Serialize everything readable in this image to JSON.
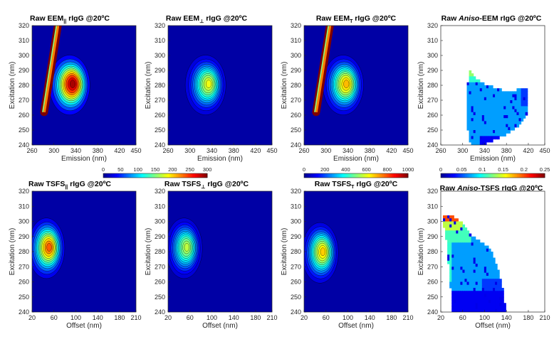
{
  "colors": {
    "colormap": [
      "#00008f",
      "#0000ff",
      "#007fff",
      "#00ffff",
      "#7fff7f",
      "#ffff00",
      "#ff7f00",
      "#ff0000",
      "#7f0000"
    ],
    "background_map": "#0a10a8",
    "contour_line": "#000000",
    "blank": "#ffffff"
  },
  "chart_data": [
    {
      "type": "heatmap",
      "id": "p1",
      "title": {
        "pre": "Raw EEM",
        "sub": "||",
        "post": " rIgG @20ºC",
        "italic": ""
      },
      "xlabel": "Emission (nm)",
      "ylabel": "Excitation (nm)",
      "xlim": [
        260,
        450
      ],
      "ylim": [
        240,
        320
      ],
      "xticks": [
        260,
        300,
        340,
        380,
        420,
        450
      ],
      "xtick_labels": [
        "260",
        "300",
        "340",
        "380",
        "420",
        "450"
      ],
      "yticks": [
        240,
        250,
        260,
        270,
        280,
        290,
        300,
        310,
        320
      ],
      "clim": [
        0,
        300
      ],
      "colorbar": "c1",
      "peak": {
        "x": 335,
        "y": 281,
        "value": 300,
        "sx": 30,
        "sy": 17
      },
      "scatter": true,
      "mask": null
    },
    {
      "type": "heatmap",
      "id": "p2",
      "title": {
        "pre": "Raw EEM",
        "sub": "⊥",
        "post": " rIgG @20ºC",
        "italic": ""
      },
      "xlabel": "Emission (nm)",
      "ylabel": "Excitation (nm)",
      "xlim": [
        260,
        450
      ],
      "ylim": [
        240,
        320
      ],
      "xticks": [
        260,
        300,
        340,
        380,
        420,
        450
      ],
      "xtick_labels": [
        "260",
        "300",
        "340",
        "380",
        "420",
        "450"
      ],
      "yticks": [
        240,
        250,
        260,
        270,
        280,
        290,
        300,
        310,
        320
      ],
      "clim": [
        0,
        300
      ],
      "colorbar": "c1",
      "peak": {
        "x": 335,
        "y": 281,
        "value": 190,
        "sx": 30,
        "sy": 17
      },
      "scatter": false,
      "mask": null
    },
    {
      "type": "heatmap",
      "id": "p3",
      "title": {
        "pre": "Raw EEM",
        "sub": "T",
        "post": " rIgG @20ºC",
        "italic": ""
      },
      "xlabel": "Emission (nm)",
      "ylabel": "Excitation (nm)",
      "xlim": [
        260,
        450
      ],
      "ylim": [
        240,
        320
      ],
      "xticks": [
        260,
        300,
        340,
        380,
        420,
        450
      ],
      "xtick_labels": [
        "260",
        "300",
        "340",
        "380",
        "420",
        "450"
      ],
      "yticks": [
        240,
        250,
        260,
        270,
        280,
        290,
        300,
        310,
        320
      ],
      "clim": [
        0,
        1000
      ],
      "colorbar": "c2",
      "peak": {
        "x": 338,
        "y": 281,
        "value": 720,
        "sx": 30,
        "sy": 17
      },
      "scatter": true,
      "mask": null
    },
    {
      "type": "heatmap",
      "id": "p4",
      "title": {
        "pre": "Raw ",
        "sub": "",
        "post": "-EEM rIgG @20ºC",
        "italic": "Aniso"
      },
      "xlabel": "Emission (nm)",
      "ylabel": "Excitation (nm)",
      "xlim": [
        260,
        450
      ],
      "ylim": [
        240,
        320
      ],
      "xticks": [
        260,
        300,
        340,
        380,
        420,
        450
      ],
      "xtick_labels": [
        "260",
        "300",
        "340",
        "380",
        "420",
        "450"
      ],
      "yticks": [
        240,
        250,
        260,
        270,
        280,
        290,
        300,
        310,
        320
      ],
      "clim": [
        0,
        0.25
      ],
      "colorbar": "c3",
      "aniso": "eem",
      "mask": "eem"
    },
    {
      "type": "heatmap",
      "id": "p5",
      "title": {
        "pre": "Raw TSFS",
        "sub": "||",
        "post": " rIgG @20ºC",
        "italic": ""
      },
      "xlabel": "Offset (nm)",
      "ylabel": "Excitation (nm)",
      "xlim": [
        20,
        210
      ],
      "ylim": [
        240,
        320
      ],
      "xticks": [
        20,
        60,
        100,
        140,
        180,
        210
      ],
      "xtick_labels": [
        "20",
        "60",
        "100",
        "140",
        "180",
        "210"
      ],
      "yticks": [
        240,
        250,
        260,
        270,
        280,
        290,
        300,
        310,
        320
      ],
      "clim": [
        0,
        300
      ],
      "peak": {
        "x": 52,
        "y": 283,
        "value": 245,
        "sx": 27,
        "sy": 17
      },
      "scatter": false,
      "mask": null
    },
    {
      "type": "heatmap",
      "id": "p6",
      "title": {
        "pre": "Raw TSFS",
        "sub": "⊥",
        "post": " rIgG @20ºC",
        "italic": ""
      },
      "xlabel": "Offset (nm)",
      "ylabel": "Excitation (nm)",
      "xlim": [
        20,
        210
      ],
      "ylim": [
        240,
        320
      ],
      "xticks": [
        20,
        60,
        100,
        140,
        180,
        210
      ],
      "xtick_labels": [
        "20",
        "60",
        "100",
        "140",
        "180",
        "210"
      ],
      "yticks": [
        240,
        250,
        260,
        270,
        280,
        290,
        300,
        310,
        320
      ],
      "clim": [
        0,
        300
      ],
      "peak": {
        "x": 55,
        "y": 283,
        "value": 175,
        "sx": 27,
        "sy": 17
      },
      "scatter": false,
      "mask": null
    },
    {
      "type": "heatmap",
      "id": "p7",
      "title": {
        "pre": "Raw TSFS",
        "sub": "T",
        "post": " rIgG @20ºC",
        "italic": ""
      },
      "xlabel": "Offset (nm)",
      "ylabel": "Excitation (nm)",
      "xlim": [
        20,
        210
      ],
      "ylim": [
        240,
        320
      ],
      "xticks": [
        20,
        60,
        100,
        140,
        180,
        210
      ],
      "xtick_labels": [
        "20",
        "60",
        "100",
        "140",
        "180",
        "210"
      ],
      "yticks": [
        240,
        250,
        260,
        270,
        280,
        290,
        300,
        310,
        320
      ],
      "clim": [
        0,
        1000
      ],
      "peak": {
        "x": 55,
        "y": 280,
        "value": 700,
        "sx": 27,
        "sy": 17
      },
      "scatter": false,
      "mask": null
    },
    {
      "type": "heatmap",
      "id": "p8",
      "title": {
        "pre": "Raw ",
        "sub": "",
        "post": "-TSFS rIgG @20ºC",
        "italic": "Aniso"
      },
      "xlabel": "Offset (nm)",
      "ylabel": "Excitation (nm)",
      "xlim": [
        20,
        210
      ],
      "ylim": [
        240,
        320
      ],
      "xticks": [
        20,
        60,
        100,
        140,
        180,
        210
      ],
      "xtick_labels": [
        "20",
        "60",
        "100",
        "140",
        "180",
        "210"
      ],
      "yticks": [
        240,
        250,
        260,
        270,
        280,
        290,
        300,
        310,
        320
      ],
      "clim": [
        0,
        0.25
      ],
      "aniso": "tsfs",
      "mask": "tsfs"
    }
  ],
  "colorbars": [
    {
      "id": "c1",
      "ticks": [
        "0",
        "50",
        "100",
        "150",
        "200",
        "250",
        "300"
      ],
      "clim": [
        0,
        300
      ]
    },
    {
      "id": "c2",
      "ticks": [
        "0",
        "200",
        "400",
        "600",
        "800",
        "1000"
      ],
      "clim": [
        0,
        1000
      ]
    },
    {
      "id": "c3",
      "ticks": [
        "0",
        "0.05",
        "0.1",
        "0.15",
        "0.2",
        "0.25"
      ],
      "clim": [
        0,
        0.25
      ]
    }
  ]
}
